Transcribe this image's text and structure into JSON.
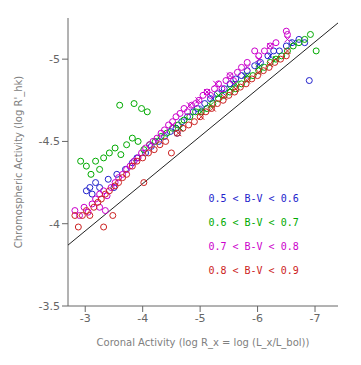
{
  "chart_data": {
    "type": "scatter",
    "xlabel": "Coronal Activity (log R_x = log (L_x/L_bol))",
    "ylabel": "Chromospheric Activity (log R'_hk)",
    "xlim": [
      -2.7,
      -7.4
    ],
    "ylim": [
      -3.5,
      -5.25
    ],
    "xticks": [
      -3,
      -4,
      -5,
      -6,
      -7
    ],
    "yticks": [
      -5,
      -4.5,
      -4,
      -3.5
    ],
    "series": [
      {
        "type": "line",
        "color": "#222222",
        "x": [
          -2.7,
          -7.4
        ],
        "values": [
          -3.87,
          -5.22
        ]
      },
      {
        "name": "0.5 < B-V < 0.6",
        "color": "#2222cc",
        "marker": "circle",
        "x": [
          -3.02,
          -3.08,
          -3.12,
          -3.18,
          -3.25,
          -3.4,
          -3.55,
          -3.7,
          -3.82,
          -3.9,
          -4.05,
          -4.15,
          -4.28,
          -4.38,
          -4.48,
          -4.58,
          -4.68,
          -4.78,
          -4.88,
          -4.95,
          -5.08,
          -5.18,
          -5.3,
          -5.42,
          -5.52,
          -5.62,
          -5.72,
          -5.82,
          -5.95,
          -6.05,
          -6.18,
          -6.28,
          -6.38,
          -6.5,
          -6.6,
          -6.72,
          -6.82,
          -6.9,
          -3.5,
          -4.6
        ],
        "values": [
          -4.2,
          -4.22,
          -4.18,
          -4.25,
          -4.22,
          -4.27,
          -4.3,
          -4.33,
          -4.37,
          -4.4,
          -4.43,
          -4.47,
          -4.5,
          -4.53,
          -4.56,
          -4.58,
          -4.62,
          -4.65,
          -4.68,
          -4.7,
          -4.73,
          -4.76,
          -4.79,
          -4.82,
          -4.85,
          -4.88,
          -4.9,
          -4.93,
          -4.96,
          -4.98,
          -5.02,
          -5.05,
          -5.05,
          -5.08,
          -5.1,
          -5.12,
          -5.1,
          -4.87,
          -4.22,
          -4.55
        ]
      },
      {
        "color": "#2222cc",
        "marker": "x",
        "x": [
          -4.65,
          -5.05,
          -5.22,
          -5.38,
          -5.58,
          -5.78,
          -6.02,
          -6.22,
          -6.62
        ],
        "values": [
          -4.58,
          -4.7,
          -4.76,
          -4.8,
          -4.85,
          -4.9,
          -4.97,
          -5.02,
          -5.1
        ]
      },
      {
        "name": "0.6 < B-V < 0.7",
        "color": "#00aa00",
        "marker": "circle",
        "x": [
          -2.92,
          -3.02,
          -3.1,
          -3.18,
          -3.25,
          -3.32,
          -3.42,
          -3.52,
          -3.62,
          -3.72,
          -3.82,
          -3.92,
          -4.02,
          -4.12,
          -4.22,
          -4.32,
          -4.42,
          -4.52,
          -4.62,
          -4.72,
          -4.82,
          -4.92,
          -5.02,
          -5.12,
          -5.22,
          -5.32,
          -5.42,
          -5.52,
          -5.62,
          -5.72,
          -5.82,
          -5.92,
          -6.02,
          -6.12,
          -6.22,
          -6.32,
          -6.42,
          -6.52,
          -6.62,
          -6.72,
          -6.82,
          -6.92,
          -7.02,
          -3.85,
          -3.6,
          -3.98,
          -4.08
        ],
        "values": [
          -4.38,
          -4.35,
          -4.3,
          -4.38,
          -4.33,
          -4.4,
          -4.43,
          -4.46,
          -4.42,
          -4.48,
          -4.52,
          -4.5,
          -4.45,
          -4.48,
          -4.5,
          -4.53,
          -4.55,
          -4.58,
          -4.6,
          -4.63,
          -4.65,
          -4.68,
          -4.68,
          -4.7,
          -4.73,
          -4.76,
          -4.78,
          -4.8,
          -4.82,
          -4.85,
          -4.88,
          -4.9,
          -4.93,
          -4.95,
          -4.98,
          -5.0,
          -5.02,
          -5.05,
          -5.08,
          -5.1,
          -5.12,
          -5.15,
          -5.05,
          -4.73,
          -4.72,
          -4.7,
          -4.68
        ]
      },
      {
        "color": "#00aa00",
        "marker": "x",
        "x": [
          -4.65,
          -5.02,
          -5.18,
          -5.32,
          -5.52,
          -5.62,
          -5.82,
          -6.02,
          -6.32
        ],
        "values": [
          -4.58,
          -4.68,
          -4.72,
          -4.78,
          -4.82,
          -4.85,
          -4.9,
          -4.95,
          -5.0
        ]
      },
      {
        "name": "0.7 < B-V < 0.8",
        "color": "#cc00cc",
        "marker": "circle",
        "x": [
          -2.82,
          -2.9,
          -2.98,
          -3.05,
          -3.12,
          -3.18,
          -3.25,
          -3.32,
          -3.38,
          -3.45,
          -3.52,
          -3.58,
          -3.65,
          -3.72,
          -3.78,
          -3.85,
          -3.92,
          -3.98,
          -4.05,
          -4.12,
          -4.18,
          -4.25,
          -4.32,
          -4.38,
          -4.45,
          -4.52,
          -4.58,
          -4.65,
          -4.72,
          -4.78,
          -4.85,
          -4.92,
          -4.98,
          -5.05,
          -5.12,
          -5.18,
          -5.25,
          -5.32,
          -5.38,
          -5.45,
          -5.52,
          -5.58,
          -5.65,
          -5.72,
          -5.82,
          -6.02,
          -6.12,
          -6.22,
          -6.32,
          -6.52,
          -3.25,
          -3.35,
          -5.95,
          -6.5
        ],
        "values": [
          -4.08,
          -4.05,
          -4.1,
          -4.07,
          -4.12,
          -4.15,
          -4.18,
          -4.2,
          -4.17,
          -4.22,
          -4.25,
          -4.28,
          -4.3,
          -4.33,
          -4.35,
          -4.38,
          -4.4,
          -4.43,
          -4.46,
          -4.48,
          -4.5,
          -4.52,
          -4.55,
          -4.57,
          -4.6,
          -4.62,
          -4.65,
          -4.67,
          -4.7,
          -4.68,
          -4.72,
          -4.73,
          -4.75,
          -4.78,
          -4.8,
          -4.78,
          -4.82,
          -4.85,
          -4.82,
          -4.87,
          -4.9,
          -4.87,
          -4.92,
          -4.95,
          -4.98,
          -5.02,
          -5.05,
          -5.08,
          -5.1,
          -5.15,
          -4.1,
          -4.08,
          -5.05,
          -5.17
        ]
      },
      {
        "color": "#cc00cc",
        "marker": "x",
        "x": [
          -4.52,
          -4.82,
          -4.97,
          -5.12,
          -5.28,
          -5.52,
          -5.82,
          -6.02,
          -6.22,
          -6.52
        ],
        "values": [
          -4.6,
          -4.72,
          -4.75,
          -4.8,
          -4.85,
          -4.9,
          -4.95,
          -5.0,
          -5.08,
          -5.12
        ]
      },
      {
        "name": "0.8 < B-V < 0.9",
        "color": "#cc2222",
        "marker": "circle",
        "x": [
          -2.82,
          -2.88,
          -2.95,
          -3.02,
          -3.08,
          -3.15,
          -3.22,
          -3.28,
          -3.35,
          -3.42,
          -3.48,
          -3.52,
          -3.58,
          -3.65,
          -3.72,
          -3.82,
          -3.9,
          -4.0,
          -4.1,
          -4.2,
          -4.3,
          -4.4,
          -4.5,
          -4.6,
          -4.7,
          -4.8,
          -4.9,
          -5.0,
          -5.1,
          -5.2,
          -5.3,
          -5.4,
          -5.5,
          -5.6,
          -5.7,
          -5.8,
          -5.9,
          -6.0,
          -6.1,
          -6.2,
          -6.3,
          -6.4,
          -6.5,
          -3.32,
          -4.02
        ],
        "values": [
          -4.05,
          -3.98,
          -4.05,
          -4.08,
          -4.05,
          -4.1,
          -4.13,
          -4.15,
          -4.18,
          -4.2,
          -4.05,
          -4.23,
          -4.25,
          -4.28,
          -4.3,
          -4.35,
          -4.38,
          -4.4,
          -4.43,
          -4.45,
          -4.48,
          -4.5,
          -4.43,
          -4.55,
          -4.58,
          -4.6,
          -4.62,
          -4.65,
          -4.68,
          -4.7,
          -4.73,
          -4.75,
          -4.78,
          -4.8,
          -4.83,
          -4.85,
          -4.88,
          -4.9,
          -4.93,
          -4.95,
          -4.98,
          -5.0,
          -5.02,
          -3.98,
          -4.25
        ]
      },
      {
        "color": "#cc2222",
        "marker": "x",
        "x": [
          -4.62,
          -5.02,
          -5.22,
          -5.42,
          -5.62,
          -5.82,
          -6.02,
          -6.22,
          -6.52
        ],
        "values": [
          -4.55,
          -4.65,
          -4.7,
          -4.77,
          -4.82,
          -4.87,
          -4.92,
          -4.97,
          -5.05
        ]
      }
    ]
  }
}
